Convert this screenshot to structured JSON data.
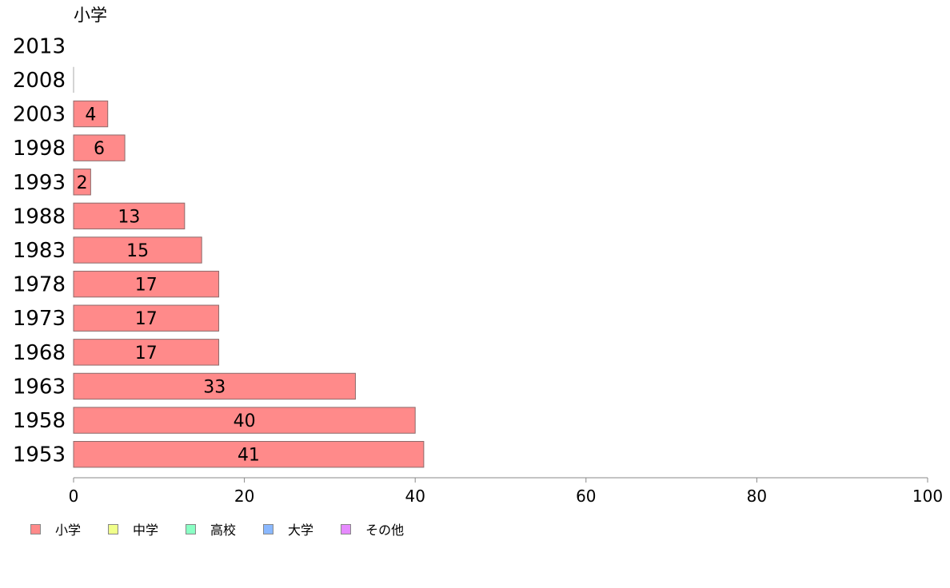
{
  "chart_data": {
    "type": "bar",
    "orientation": "horizontal",
    "title": "小学",
    "categories": [
      "2013",
      "2008",
      "2003",
      "1998",
      "1993",
      "1988",
      "1983",
      "1978",
      "1973",
      "1968",
      "1963",
      "1958",
      "1953"
    ],
    "series": [
      {
        "name": "小学",
        "values": [
          0,
          0,
          4,
          6,
          2,
          13,
          15,
          17,
          17,
          17,
          33,
          40,
          41
        ]
      }
    ],
    "xlim": [
      0,
      100
    ],
    "xticks": [
      0,
      20,
      40,
      60,
      80,
      100
    ],
    "legend": [
      "小学",
      "中学",
      "高校",
      "大学",
      "その他"
    ],
    "legend_colors": [
      "#ff8a8a",
      "#f0ff8a",
      "#8affc4",
      "#8ab8ff",
      "#e68aff"
    ],
    "legend_position": "bottom-left",
    "grid": false
  }
}
